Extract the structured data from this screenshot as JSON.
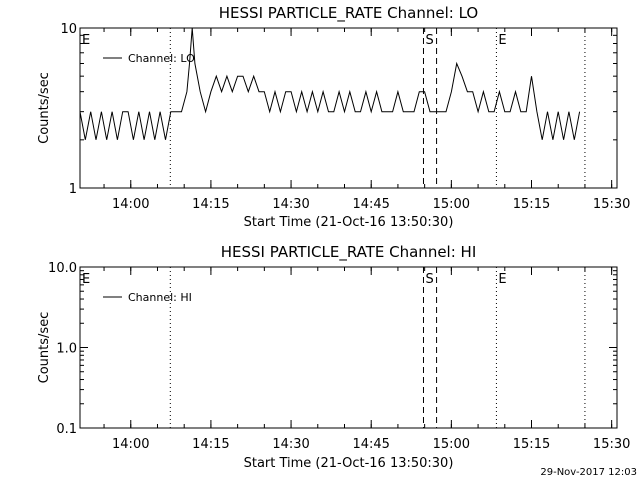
{
  "footer": {
    "timestamp": "29-Nov-2017 12:03"
  },
  "chart_data": [
    {
      "type": "line",
      "title": "HESSI PARTICLE_RATE Channel: LO",
      "xlabel": "Start Time (21-Oct-16 13:50:30)",
      "ylabel": "Counts/sec",
      "yscale": "log",
      "xlim": [
        "13:50:30",
        "15:31:00"
      ],
      "ylim": [
        1,
        10
      ],
      "xticks": [
        "14:00",
        "14:15",
        "14:30",
        "14:45",
        "15:00",
        "15:15",
        "15:30"
      ],
      "yticks": [
        "1",
        "10"
      ],
      "legend": "top-left",
      "series": [
        {
          "name": "Channel: LO",
          "x": [
            "13:50:30",
            "13:51:30",
            "13:52:30",
            "13:53:30",
            "13:54:30",
            "13:55:30",
            "13:56:30",
            "13:57:30",
            "13:58:30",
            "13:59:30",
            "14:00:30",
            "14:01:30",
            "14:02:30",
            "14:03:30",
            "14:04:30",
            "14:05:30",
            "14:06:30",
            "14:07:30",
            "14:08:30",
            "14:09:30",
            "14:10:30",
            "14:11:00",
            "14:11:30",
            "14:12:00",
            "14:13:00",
            "14:14:00",
            "14:15:00",
            "14:16:00",
            "14:17:00",
            "14:18:00",
            "14:19:00",
            "14:20:00",
            "14:21:00",
            "14:22:00",
            "14:23:00",
            "14:24:00",
            "14:25:00",
            "14:26:00",
            "14:27:00",
            "14:28:00",
            "14:29:00",
            "14:30:00",
            "14:31:00",
            "14:32:00",
            "14:33:00",
            "14:34:00",
            "14:35:00",
            "14:36:00",
            "14:37:00",
            "14:38:00",
            "14:39:00",
            "14:40:00",
            "14:41:00",
            "14:42:00",
            "14:43:00",
            "14:44:00",
            "14:45:00",
            "14:46:00",
            "14:47:00",
            "14:48:00",
            "14:49:00",
            "14:50:00",
            "14:51:00",
            "14:52:00",
            "14:53:00",
            "14:54:00",
            "14:55:00",
            "14:56:00",
            "14:57:00",
            "14:58:00",
            "14:59:00",
            "15:00:00",
            "15:01:00",
            "15:02:00",
            "15:03:00",
            "15:04:00",
            "15:05:00",
            "15:06:00",
            "15:07:00",
            "15:08:00",
            "15:09:00",
            "15:10:00",
            "15:11:00",
            "15:12:00",
            "15:13:00",
            "15:14:00",
            "15:15:00",
            "15:16:00",
            "15:17:00",
            "15:18:00",
            "15:19:00",
            "15:20:00",
            "15:21:00",
            "15:22:00",
            "15:23:00",
            "15:24:00"
          ],
          "values": [
            3,
            2,
            3,
            2,
            3,
            2,
            3,
            2,
            3,
            3,
            2,
            3,
            2,
            3,
            2,
            3,
            2,
            3,
            3,
            3,
            4,
            6,
            10,
            6,
            4,
            3,
            4,
            5,
            4,
            5,
            4,
            5,
            5,
            4,
            5,
            4,
            4,
            3,
            4,
            3,
            4,
            4,
            3,
            4,
            3,
            4,
            3,
            4,
            3,
            3,
            4,
            3,
            4,
            3,
            3,
            4,
            3,
            4,
            3,
            3,
            3,
            4,
            3,
            3,
            3,
            4,
            4,
            3,
            3,
            3,
            3,
            4,
            6,
            5,
            4,
            4,
            3,
            4,
            3,
            3,
            4,
            3,
            3,
            4,
            3,
            3,
            5,
            3,
            2,
            3,
            2,
            3,
            2,
            3,
            2,
            3
          ],
          "color": "#000000"
        }
      ],
      "markers": [
        {
          "time": "13:50:30",
          "label": "E",
          "style": "dotted"
        },
        {
          "time": "14:07:24",
          "label": "",
          "style": "dotted"
        },
        {
          "time": "14:54:47",
          "label": "S",
          "style": "dashed"
        },
        {
          "time": "14:57:14",
          "label": "",
          "style": "dashed"
        },
        {
          "time": "15:08:26",
          "label": "E",
          "style": "dotted"
        },
        {
          "time": "15:25:00",
          "label": "",
          "style": "dotted"
        }
      ]
    },
    {
      "type": "line",
      "title": "HESSI PARTICLE_RATE Channel: HI",
      "xlabel": "Start Time (21-Oct-16 13:50:30)",
      "ylabel": "Counts/sec",
      "yscale": "log",
      "xlim": [
        "13:50:30",
        "15:31:00"
      ],
      "ylim": [
        0.1,
        10
      ],
      "xticks": [
        "14:00",
        "14:15",
        "14:30",
        "14:45",
        "15:00",
        "15:15",
        "15:30"
      ],
      "yticks": [
        "0.1",
        "1.0",
        "10.0"
      ],
      "legend": "top-left",
      "series": [
        {
          "name": "Channel: HI",
          "x": [],
          "values": [],
          "color": "#000000"
        }
      ],
      "markers": [
        {
          "time": "13:50:30",
          "label": "E",
          "style": "dotted"
        },
        {
          "time": "14:07:24",
          "label": "",
          "style": "dotted"
        },
        {
          "time": "14:54:47",
          "label": "S",
          "style": "dashed"
        },
        {
          "time": "14:57:14",
          "label": "",
          "style": "dashed"
        },
        {
          "time": "15:08:26",
          "label": "E",
          "style": "dotted"
        },
        {
          "time": "15:25:00",
          "label": "",
          "style": "dotted"
        }
      ]
    }
  ]
}
